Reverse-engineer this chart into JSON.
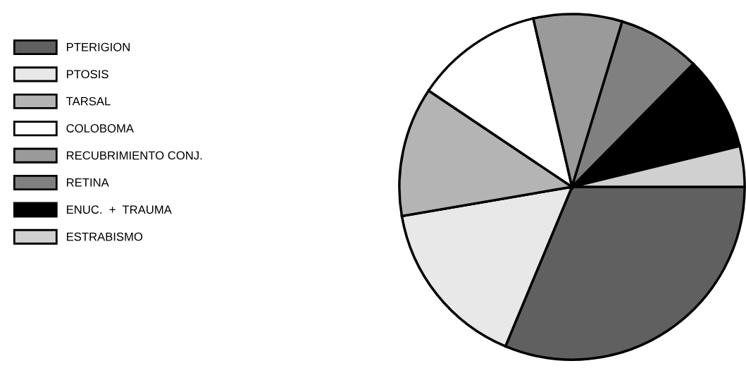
{
  "chart_data": {
    "type": "pie",
    "categories": [
      "PTERIGION",
      "PTOSIS",
      "TARSAL",
      "COLOBOMA",
      "RECUBRIMIENTO CONJ.",
      "RETINA",
      "ENUC.  +  TRAUMA",
      "ESTRABISMO"
    ],
    "values": [
      31.3,
      16.0,
      12.1,
      12.0,
      8.3,
      7.7,
      8.8,
      3.8
    ],
    "colors": [
      "#606060",
      "#e8e8e8",
      "#b4b4b4",
      "#ffffff",
      "#9a9a9a",
      "#808080",
      "#000000",
      "#d0d0d0"
    ],
    "legend": "left"
  }
}
